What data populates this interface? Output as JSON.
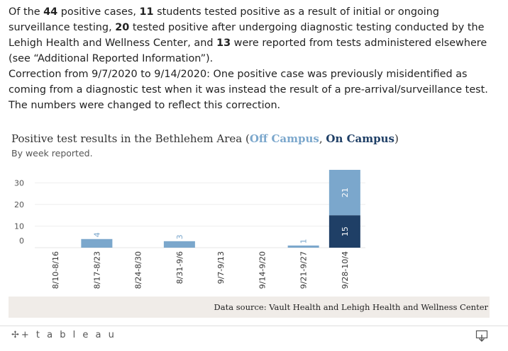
{
  "intro": {
    "p1": [
      {
        "t": "Of the ",
        "b": false
      },
      {
        "t": "44",
        "b": true
      },
      {
        "t": " positive cases, ",
        "b": false
      },
      {
        "t": "11",
        "b": true
      },
      {
        "t": " students tested positive as a result of initial or ongoing surveillance testing, ",
        "b": false
      },
      {
        "t": "20",
        "b": true
      },
      {
        "t": " tested positive after undergoing diagnostic testing conducted by the Lehigh Health and Wellness Center, and ",
        "b": false
      },
      {
        "t": "13",
        "b": true
      },
      {
        "t": " were reported from tests administered elsewhere (see “Additional Reported Information”).",
        "b": false
      }
    ],
    "p2": "Correction from 9/7/2020 to 9/14/2020: One positive case was previously misidentified as coming from a diagnostic test when it was instead the result of a pre-arrival/surveillance test. The numbers were changed to reflect this correction."
  },
  "chart_data": {
    "type": "bar",
    "stacked": true,
    "title": {
      "prefix": "Positive test results in the Bethlehem Area (",
      "off": "Off Campus",
      "sep": ", ",
      "on": "On Campus",
      "suffix": ")"
    },
    "subtitle": "By week reported.",
    "categories": [
      "8/10-8/16",
      "8/17-8/23",
      "8/24-8/30",
      "8/31-9/6",
      "9/7-9/13",
      "9/14-9/20",
      "9/21-9/27",
      "9/28-10/4"
    ],
    "series": [
      {
        "name": "On Campus",
        "color": "#1f3f66",
        "values": [
          0,
          0,
          0,
          0,
          0,
          0,
          0,
          15
        ]
      },
      {
        "name": "Off Campus",
        "color": "#7ba7cc",
        "values": [
          0,
          4,
          0,
          3,
          0,
          0,
          1,
          21
        ]
      }
    ],
    "yticks": [
      0,
      10,
      20,
      30
    ],
    "ylim": [
      0,
      36
    ],
    "grid": true
  },
  "source": "Data source: Vault Health and Lehigh Health and Wellness Center",
  "footer": {
    "logo": "+ t a b l e a u"
  }
}
